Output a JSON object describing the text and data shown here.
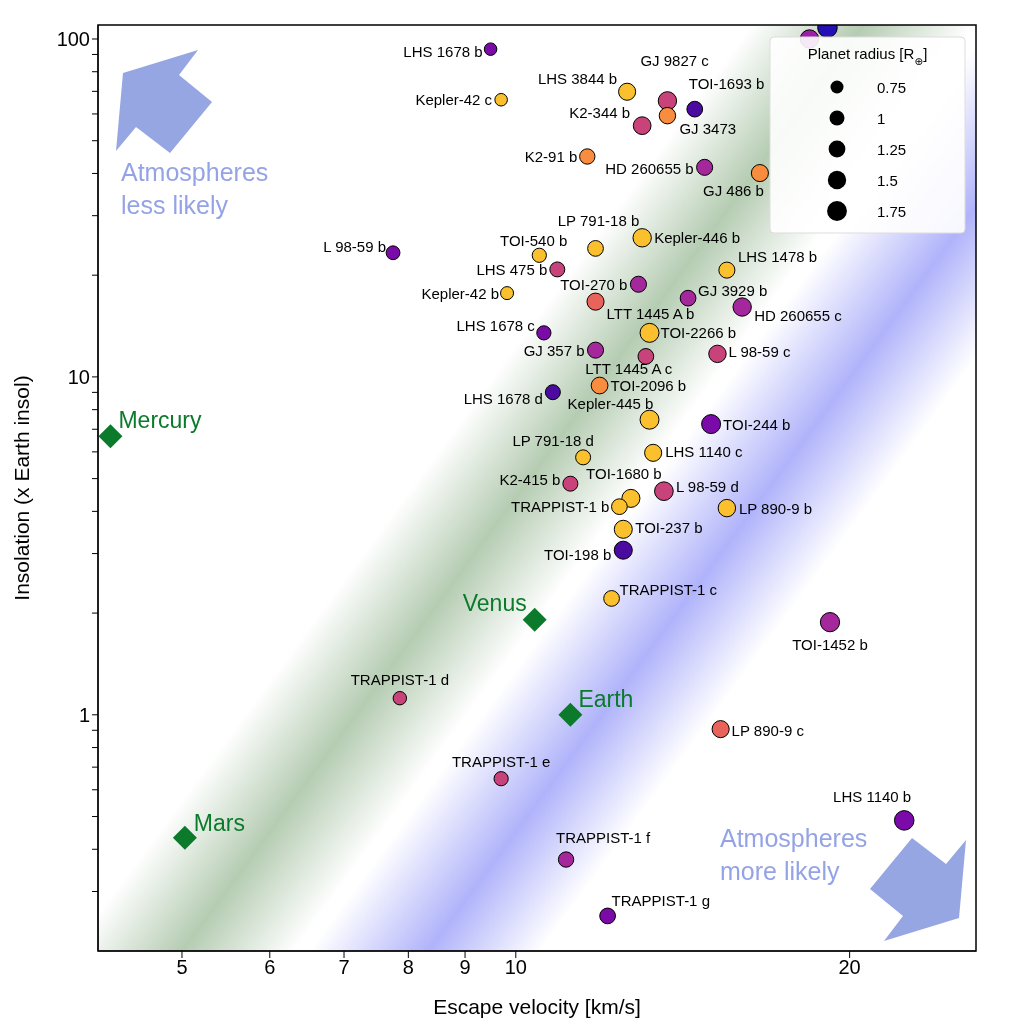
{
  "chart_data": {
    "type": "bubble",
    "xlabel": "Escape velocity [km/s]",
    "ylabel": "Insolation (x Earth insol)",
    "log": "xy",
    "xlim": [
      4.2,
      26
    ],
    "ylim": [
      0.2,
      110
    ],
    "xticks": [
      5,
      6,
      7,
      8,
      9,
      10,
      20
    ],
    "yticks": [
      {
        "value": 0.3,
        "label": null
      },
      {
        "value": 0.4,
        "label": null
      },
      {
        "value": 0.5,
        "label": null
      },
      {
        "value": 0.6,
        "label": null
      },
      {
        "value": 0.7,
        "label": null
      },
      {
        "value": 0.8,
        "label": null
      },
      {
        "value": 0.9,
        "label": null
      },
      1,
      {
        "value": 2,
        "label": null
      },
      {
        "value": 3,
        "label": null
      },
      {
        "value": 4,
        "label": null
      },
      {
        "value": 5,
        "label": null
      },
      {
        "value": 6,
        "label": null
      },
      {
        "value": 7,
        "label": null
      },
      {
        "value": 8,
        "label": null
      },
      {
        "value": 9,
        "label": null
      },
      10,
      {
        "value": 20,
        "label": null
      },
      {
        "value": 30,
        "label": null
      },
      {
        "value": 40,
        "label": null
      },
      {
        "value": 50,
        "label": null
      },
      {
        "value": 60,
        "label": null
      },
      {
        "value": 70,
        "label": null
      },
      {
        "value": 80,
        "label": null
      },
      {
        "value": 90,
        "label": null
      },
      100
    ],
    "legend_title": "Planet radius [R$_{⊕}$]",
    "size_legend": [
      0.75,
      1,
      1.25,
      1.5,
      1.75
    ],
    "series": [
      {
        "x": [
          9.49,
          9.7,
          7.75,
          9.82,
          10.6,
          10.5,
          12.6,
          13.7,
          14.5,
          13.7,
          13.0,
          11.6,
          14.8,
          16.6,
          13.0,
          11.8,
          10.9,
          12.9,
          11.8,
          15.5,
          14.3,
          16.0,
          13.2,
          11.8,
          13.1,
          15.2,
          11.9,
          10.8,
          13.2,
          15.0,
          11.5,
          13.3,
          11.2,
          13.6,
          12.7,
          12.4,
          15.5,
          12.5,
          12.5,
          12.2,
          19.2,
          7.86,
          15.3,
          9.7,
          22.4,
          11.1,
          12.1,
          18.4,
          19.1
        ],
        "values": [
          93.3,
          66.1,
          23.3,
          17.7,
          13.5,
          22.9,
          69.8,
          65.6,
          62.0,
          59.3,
          55.4,
          44.9,
          41.7,
          40.1,
          25.8,
          24.0,
          20.8,
          18.8,
          16.7,
          20.7,
          17.1,
          16.1,
          13.5,
          12.0,
          11.5,
          11.7,
          9.43,
          9.01,
          7.47,
          7.25,
          5.78,
          5.96,
          4.83,
          4.59,
          4.37,
          4.13,
          4.09,
          3.54,
          3.07,
          2.21,
          1.88,
          1.12,
          0.907,
          0.647,
          0.487,
          0.373,
          0.254,
          100,
          108
        ],
        "sizes": [
          0.7,
          0.7,
          0.85,
          0.75,
          0.9,
          0.9,
          1.3,
          1.5,
          1.1,
          1.2,
          1.4,
          1.05,
          1.15,
          1.3,
          1.5,
          1.1,
          1.0,
          1.15,
          1.3,
          1.15,
          1.1,
          1.5,
          1.6,
          1.15,
          1.1,
          1.35,
          1.25,
          1.0,
          1.6,
          1.6,
          1.0,
          1.3,
          1.0,
          1.55,
          1.45,
          1.1,
          1.35,
          1.45,
          1.45,
          1.1,
          1.65,
          0.8,
          1.3,
          0.9,
          1.7,
          1.05,
          1.1,
          1.5,
          1.7
        ],
        "colors": [
          "#7b0ba8",
          "#fbc02d",
          "#7b0ba8",
          "#fbc02d",
          "#7b0ba8",
          "#fbc02d",
          "#fbc02d",
          "#c8437a",
          "#4b0aa0",
          "#f98d3f",
          "#c8437a",
          "#f98d3f",
          "#a4279c",
          "#f98d3f",
          "#fbc02d",
          "#fbc02d",
          "#c8437a",
          "#a4279c",
          "#e8645a",
          "#fbc02d",
          "#a4279c",
          "#a4279c",
          "#fbc02d",
          "#a4279c",
          "#c8437a",
          "#c8437a",
          "#f98d3f",
          "#4b0aa0",
          "#fbc02d",
          "#7b0ba8",
          "#fbc02d",
          "#fbc02d",
          "#c8437a",
          "#c8437a",
          "#fbc02d",
          "#fbc02d",
          "#fbc02d",
          "#fbc02d",
          "#4b0aa0",
          "#fbc02d",
          "#a4279c",
          "#c8437a",
          "#e8645a",
          "#c8437a",
          "#7b0ba8",
          "#a4279c",
          "#7b0ba8",
          "#9c1fa8",
          "#2410b4"
        ]
      },
      {
        "type": "scatter",
        "marker": "diamond",
        "color": "#0b7a2b",
        "x": [
          4.31,
          10.4,
          11.2,
          5.03
        ],
        "values": [
          6.67,
          1.91,
          1,
          0.433
        ]
      }
    ],
    "annotations": [
      {
        "text": "LHS 1678 b",
        "x": 9.49,
        "y": 93.3
      },
      {
        "text": "Kepler-42 c",
        "x": 9.7,
        "y": 66.1
      },
      {
        "text": "L 98-59 b",
        "x": 7.75,
        "y": 23.3
      },
      {
        "text": "Kepler-42 b",
        "x": 9.82,
        "y": 17.7
      },
      {
        "text": "LHS 1678 c",
        "x": 10.6,
        "y": 13.5
      },
      {
        "text": "TOI-540 b",
        "x": 10.5,
        "y": 22.9
      },
      {
        "text": "LHS 3844 b",
        "x": 12.6,
        "y": 69.8
      },
      {
        "text": "GJ 9827 c",
        "x": 13.7,
        "y": 65.6
      },
      {
        "text": "TOI-1693 b",
        "x": 14.5,
        "y": 62.0
      },
      {
        "text": "GJ 3473",
        "x": 13.7,
        "y": 59.3
      },
      {
        "text": "K2-344 b",
        "x": 13.0,
        "y": 55.4
      },
      {
        "text": "K2-91 b",
        "x": 11.6,
        "y": 44.9
      },
      {
        "text": "HD 260655 b",
        "x": 14.8,
        "y": 41.7
      },
      {
        "text": "GJ 486 b",
        "x": 16.6,
        "y": 40.1
      },
      {
        "text": "Kepler-446 b",
        "x": 13.0,
        "y": 25.8
      },
      {
        "text": "LP 791-18 b",
        "x": 11.8,
        "y": 24.0
      },
      {
        "text": "LHS 475 b",
        "x": 10.9,
        "y": 20.8
      },
      {
        "text": "TOI-270 b",
        "x": 12.9,
        "y": 18.8
      },
      {
        "text": "LTT 1445 A b",
        "x": 11.8,
        "y": 16.7
      },
      {
        "text": "LHS 1478 b",
        "x": 15.5,
        "y": 20.7
      },
      {
        "text": "GJ 3929 b",
        "x": 14.3,
        "y": 17.1
      },
      {
        "text": "HD 260655 c",
        "x": 16.0,
        "y": 16.1
      },
      {
        "text": "TOI-2266 b",
        "x": 13.2,
        "y": 13.5
      },
      {
        "text": "GJ 357 b",
        "x": 11.8,
        "y": 12.0
      },
      {
        "text": "LTT 1445 A c",
        "x": 13.1,
        "y": 11.5
      },
      {
        "text": "L 98-59 c",
        "x": 15.2,
        "y": 11.7
      },
      {
        "text": "TOI-2096 b",
        "x": 11.9,
        "y": 9.43
      },
      {
        "text": "LHS 1678 d",
        "x": 10.8,
        "y": 9.01
      },
      {
        "text": "Kepler-445 b",
        "x": 13.2,
        "y": 7.47
      },
      {
        "text": "TOI-244 b",
        "x": 15.0,
        "y": 7.25
      },
      {
        "text": "LP 791-18 d",
        "x": 11.5,
        "y": 5.78
      },
      {
        "text": "LHS 1140 c",
        "x": 13.3,
        "y": 5.96
      },
      {
        "text": "K2-415 b",
        "x": 11.2,
        "y": 4.83
      },
      {
        "text": "TOI-1680 b",
        "x": 12.7,
        "y": 4.37
      },
      {
        "text": "L 98-59 d",
        "x": 13.6,
        "y": 4.59
      },
      {
        "text": "TRAPPIST-1 b",
        "x": 12.4,
        "y": 4.13
      },
      {
        "text": "LP 890-9 b",
        "x": 15.5,
        "y": 4.09
      },
      {
        "text": "TOI-237 b",
        "x": 12.5,
        "y": 3.54
      },
      {
        "text": "TOI-198 b",
        "x": 12.5,
        "y": 3.07
      },
      {
        "text": "TRAPPIST-1 c",
        "x": 12.2,
        "y": 2.21
      },
      {
        "text": "TOI-1452 b",
        "x": 19.2,
        "y": 1.88
      },
      {
        "text": "TRAPPIST-1 d",
        "x": 7.86,
        "y": 1.12
      },
      {
        "text": "LP 890-9 c",
        "x": 15.3,
        "y": 0.907
      },
      {
        "text": "TRAPPIST-1 e",
        "x": 9.7,
        "y": 0.647
      },
      {
        "text": "LHS 1140 b",
        "x": 22.4,
        "y": 0.487
      },
      {
        "text": "TRAPPIST-1 f",
        "x": 11.1,
        "y": 0.373
      },
      {
        "text": "TRAPPIST-1 g",
        "x": 12.1,
        "y": 0.254
      },
      {
        "text": "Mercury",
        "x": 4.31,
        "y": 6.67
      },
      {
        "text": "Venus",
        "x": 10.4,
        "y": 1.91
      },
      {
        "text": "Earth",
        "x": 11.2,
        "y": 1
      },
      {
        "text": "Mars",
        "x": 5.03,
        "y": 0.433
      },
      "Atmospheres less likely",
      "Atmospheres more likely"
    ]
  }
}
